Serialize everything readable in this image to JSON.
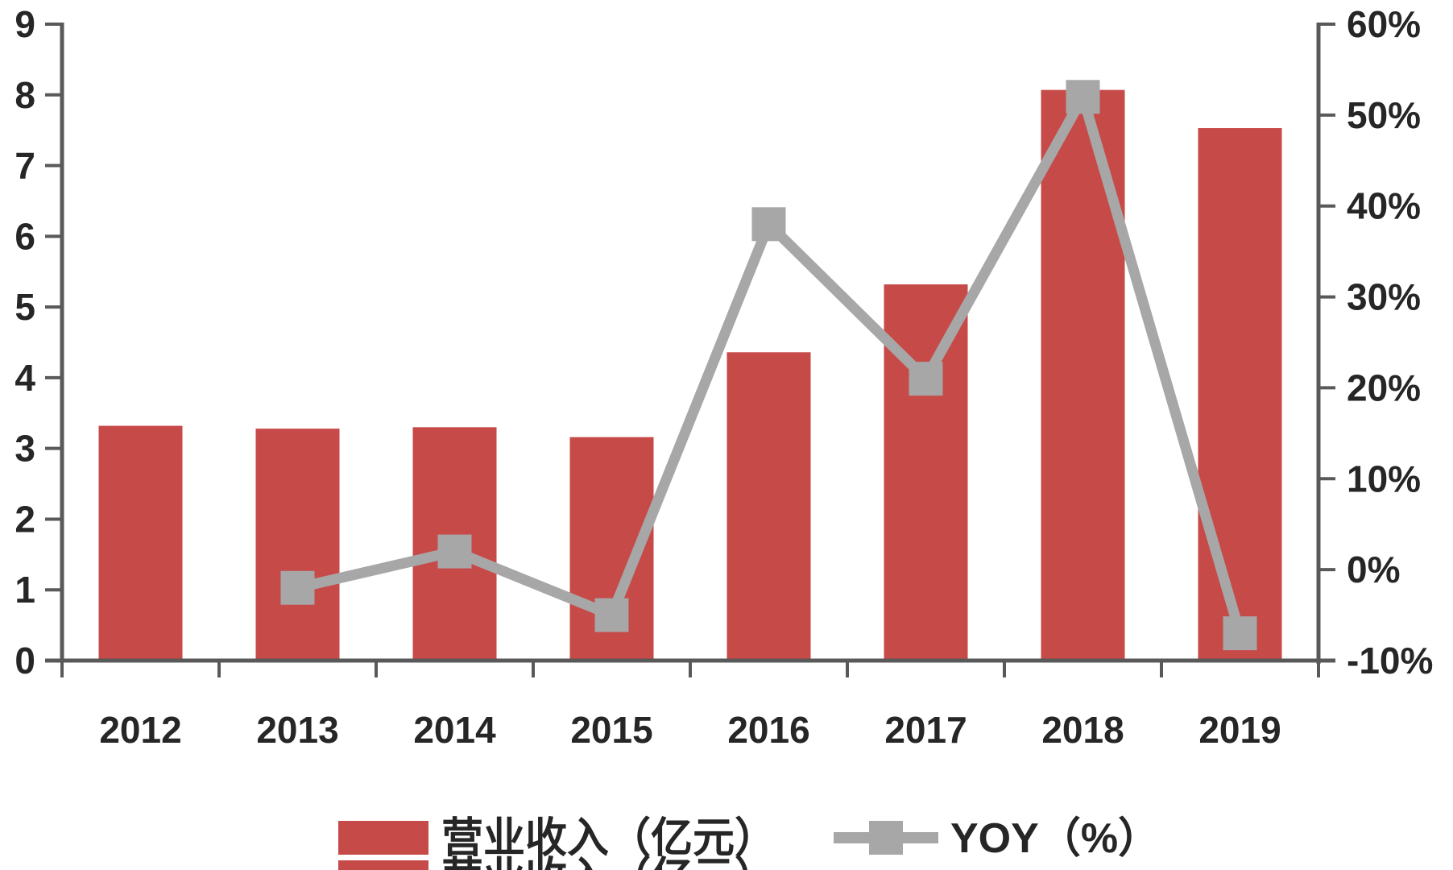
{
  "colors": {
    "bar": "#C64A48",
    "line": "#A7A7A7",
    "marker": "#A7A7A7",
    "axis": "#595959",
    "text": "#262626",
    "background": "#FFFFFF"
  },
  "chart_data": {
    "type": "bar",
    "subtype": "combo-bar-line-dual-axis",
    "title": "",
    "xlabel": "",
    "ylabel_left": "",
    "ylabel_right": "",
    "grid": false,
    "legend_position": "bottom",
    "categories": [
      "2012",
      "2013",
      "2014",
      "2015",
      "2016",
      "2017",
      "2018",
      "2019"
    ],
    "series": [
      {
        "name": "营业收入（亿元）",
        "type": "bar",
        "axis": "left",
        "values": [
          3.32,
          3.28,
          3.3,
          3.16,
          4.36,
          5.32,
          8.07,
          7.53
        ]
      },
      {
        "name": "YOY（%）",
        "type": "line",
        "axis": "right",
        "values": [
          null,
          -2,
          2,
          -5,
          38,
          21,
          52,
          -7
        ]
      }
    ],
    "left_axis": {
      "min": 0,
      "max": 9,
      "step": 1,
      "ticks": [
        "0",
        "1",
        "2",
        "3",
        "4",
        "5",
        "6",
        "7",
        "8",
        "9"
      ]
    },
    "right_axis": {
      "min": -10,
      "max": 60,
      "step": 10,
      "ticks": [
        "-10%",
        "0%",
        "10%",
        "20%",
        "30%",
        "40%",
        "50%",
        "60%"
      ]
    },
    "legend": {
      "items": [
        {
          "label": "营业收入（亿元）",
          "swatch": "bar"
        },
        {
          "label": "YOY（%）",
          "swatch": "line-marker"
        }
      ],
      "clipped_repeat_label": "营业收入（亿元）"
    }
  }
}
